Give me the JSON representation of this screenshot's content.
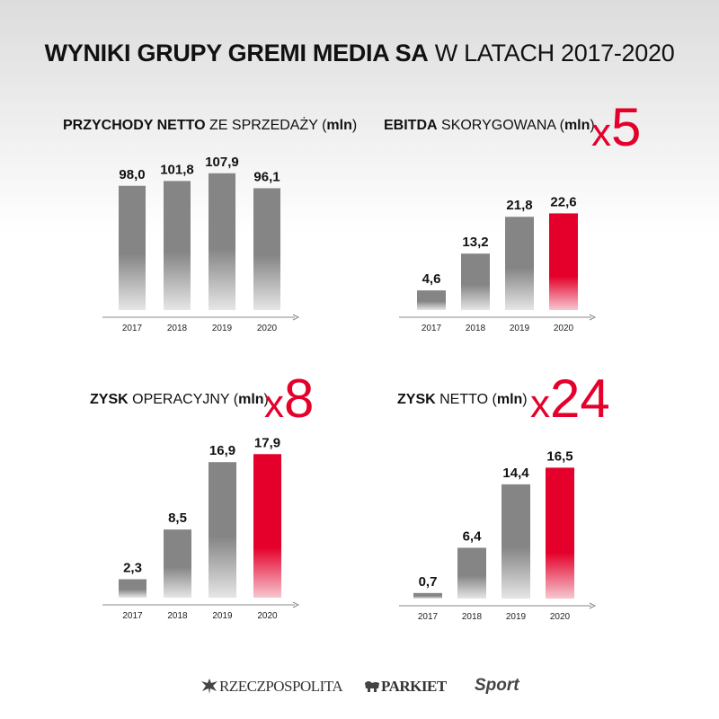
{
  "header": {
    "title_bold": "WYNIKI GRUPY GREMI MEDIA SA",
    "title_light": "W LATACH 2017-2020"
  },
  "panels": [
    {
      "title_bold": "PRZYCHODY NETTO",
      "title_light": "ZE SPRZEDAŻY",
      "title_open": "(",
      "title_unit": "mln",
      "title_close": ")",
      "multiplier_x": "",
      "multiplier_num": ""
    },
    {
      "title_bold": "EBITDA",
      "title_light": "SKORYGOWANA",
      "title_open": "(",
      "title_unit": "mln",
      "title_close": ")",
      "multiplier_x": "x",
      "multiplier_num": "5"
    },
    {
      "title_bold": "ZYSK",
      "title_light": "OPERACYJNY",
      "title_open": "(",
      "title_unit": "mln",
      "title_close": ")",
      "multiplier_x": "x",
      "multiplier_num": "8"
    },
    {
      "title_bold": "ZYSK",
      "title_light": "NETTO",
      "title_open": "(",
      "title_unit": "mln",
      "title_close": ")",
      "multiplier_x": "x",
      "multiplier_num": "24"
    }
  ],
  "chart_data": [
    {
      "type": "bar",
      "title": "PRZYCHODY NETTO ZE SPRZEDAŻY (mln)",
      "categories": [
        "2017",
        "2018",
        "2019",
        "2020"
      ],
      "values": [
        98.0,
        101.8,
        107.9,
        96.1
      ],
      "labels": [
        "98,0",
        "101,8",
        "107,9",
        "96,1"
      ],
      "highlight_index": -1,
      "ylim": [
        0,
        112
      ]
    },
    {
      "type": "bar",
      "title": "EBITDA SKORYGOWANA (mln)",
      "categories": [
        "2017",
        "2018",
        "2019",
        "2020"
      ],
      "values": [
        4.6,
        13.2,
        21.8,
        22.6
      ],
      "labels": [
        "4,6",
        "13,2",
        "21,8",
        "22,6"
      ],
      "highlight_index": 3,
      "ylim": [
        0,
        25
      ]
    },
    {
      "type": "bar",
      "title": "ZYSK OPERACYJNY (mln)",
      "categories": [
        "2017",
        "2018",
        "2019",
        "2020"
      ],
      "values": [
        2.3,
        8.5,
        16.9,
        17.9
      ],
      "labels": [
        "2,3",
        "8,5",
        "16,9",
        "17,9"
      ],
      "highlight_index": 3,
      "ylim": [
        0,
        19.5
      ]
    },
    {
      "type": "bar",
      "title": "ZYSK NETTO (mln)",
      "categories": [
        "2017",
        "2018",
        "2019",
        "2020"
      ],
      "values": [
        0.7,
        6.4,
        14.4,
        16.5
      ],
      "labels": [
        "0,7",
        "6,4",
        "14,4",
        "16,5"
      ],
      "highlight_index": 3,
      "ylim": [
        0,
        17.9
      ]
    }
  ],
  "colors": {
    "accent": "#e4002b",
    "bar_gray": "#858585",
    "text": "#111111"
  },
  "footer": {
    "logo_1": "RZECZPOSPOLITA",
    "logo_2": "PARKIET",
    "logo_3": "Sport"
  }
}
